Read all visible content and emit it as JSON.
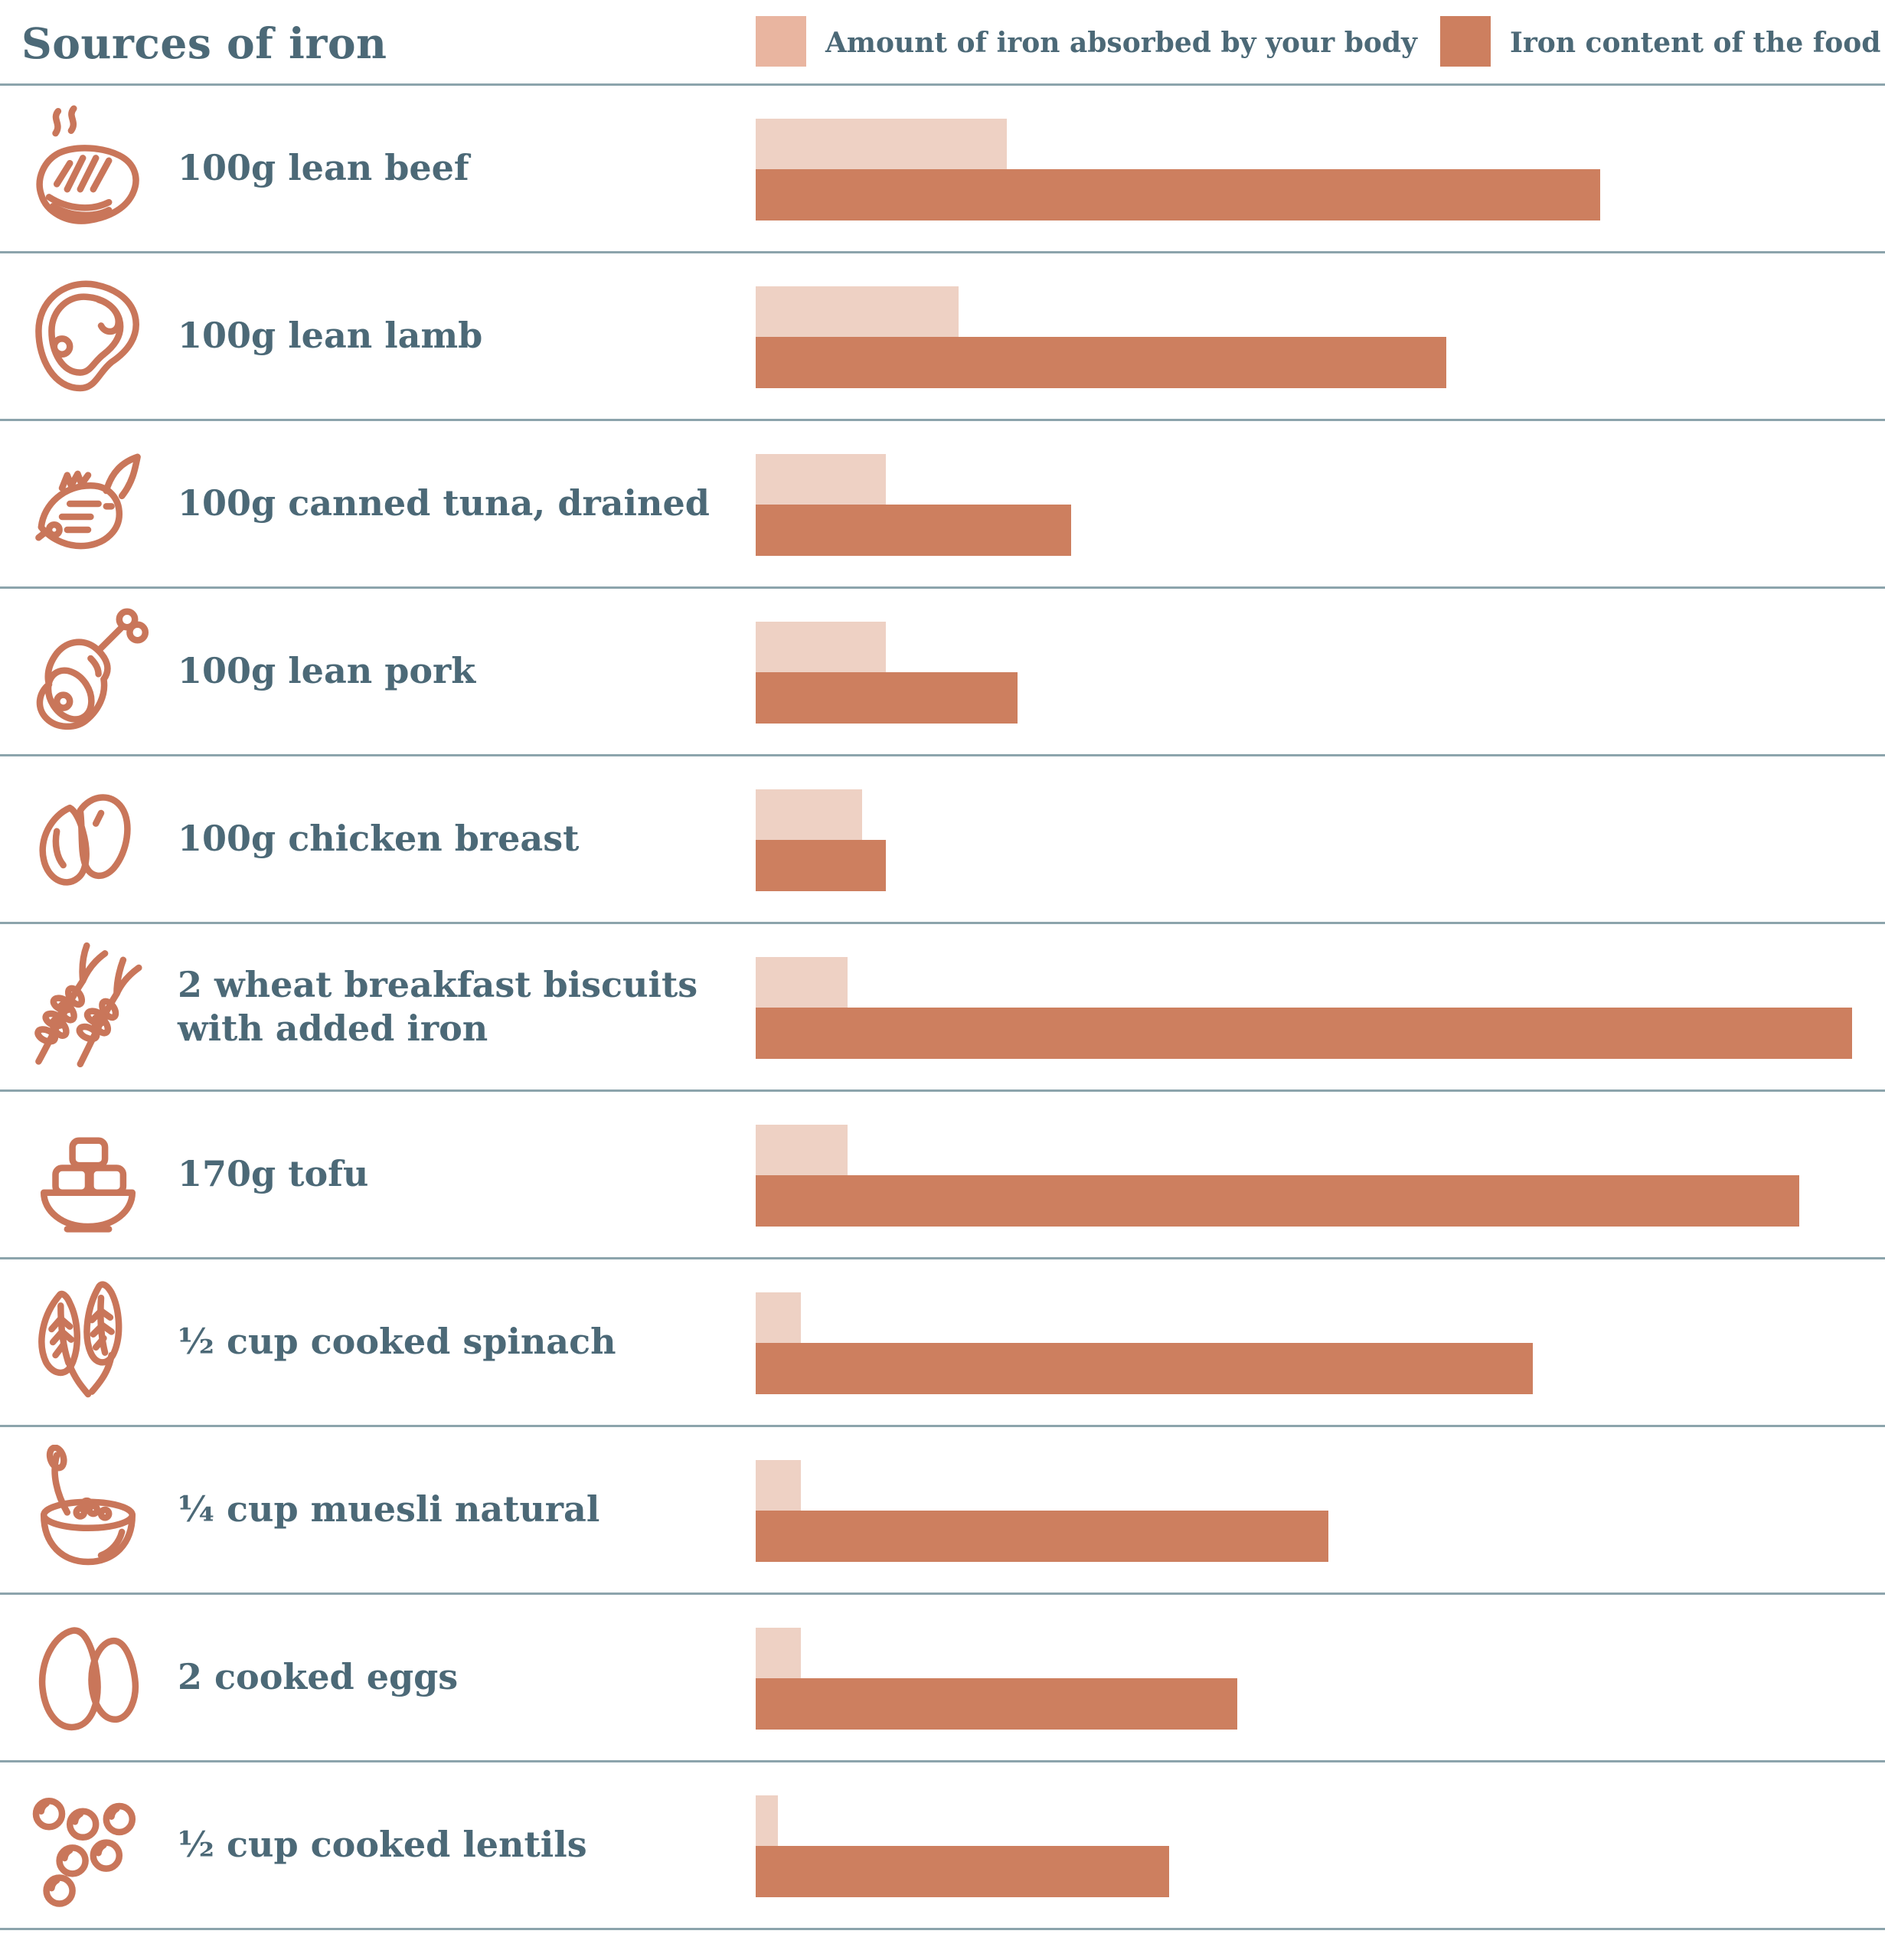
{
  "title": "Sources of iron",
  "legend": {
    "absorbed_label": "Amount of iron absorbed by your body",
    "absorbed_color": "#e9b5a0",
    "content_label": "Iron content of the food",
    "content_color": "#cd7f5f"
  },
  "colors": {
    "text": "#4c6977",
    "divider": "#8ca4ac",
    "icon_stroke": "#c9765a",
    "bar_absorbed": "#eed1c4",
    "bar_content": "#cd7f5f"
  },
  "rows": [
    {
      "icon": "steak-icon"
    },
    {
      "icon": "lamb-chop-icon"
    },
    {
      "icon": "fish-icon"
    },
    {
      "icon": "ham-icon"
    },
    {
      "icon": "chicken-breast-icon"
    },
    {
      "icon": "wheat-icon"
    },
    {
      "icon": "tofu-bowl-icon"
    },
    {
      "icon": "spinach-icon"
    },
    {
      "icon": "muesli-bowl-icon"
    },
    {
      "icon": "eggs-icon"
    },
    {
      "icon": "lentils-icon"
    }
  ],
  "chart_data": {
    "type": "bar",
    "orientation": "horizontal",
    "title": "Sources of iron",
    "xlabel": "",
    "ylabel": "",
    "axis_shown": false,
    "grid": false,
    "legend_position": "top-right",
    "units": "relative bar length, % of longest bar (no numeric axis shown in figure)",
    "categories": [
      "100g lean beef",
      "100g lean lamb",
      "100g canned tuna, drained",
      "100g lean pork",
      "100g chicken breast",
      "2 wheat breakfast biscuits with added iron",
      "170g tofu",
      "½ cup cooked spinach",
      "¼ cup muesli natural",
      "2 cooked eggs",
      "½ cup cooked lentils"
    ],
    "series": [
      {
        "name": "Amount of iron absorbed by your body",
        "color": "#eed1c4",
        "values": [
          22.9,
          18.5,
          11.9,
          11.9,
          9.7,
          8.4,
          8.4,
          4.1,
          4.1,
          4.1,
          2.0
        ]
      },
      {
        "name": "Iron content of the food",
        "color": "#cd7f5f",
        "values": [
          77.0,
          63.0,
          28.8,
          23.9,
          11.9,
          100.0,
          95.2,
          70.9,
          52.2,
          43.9,
          37.7
        ]
      }
    ]
  }
}
